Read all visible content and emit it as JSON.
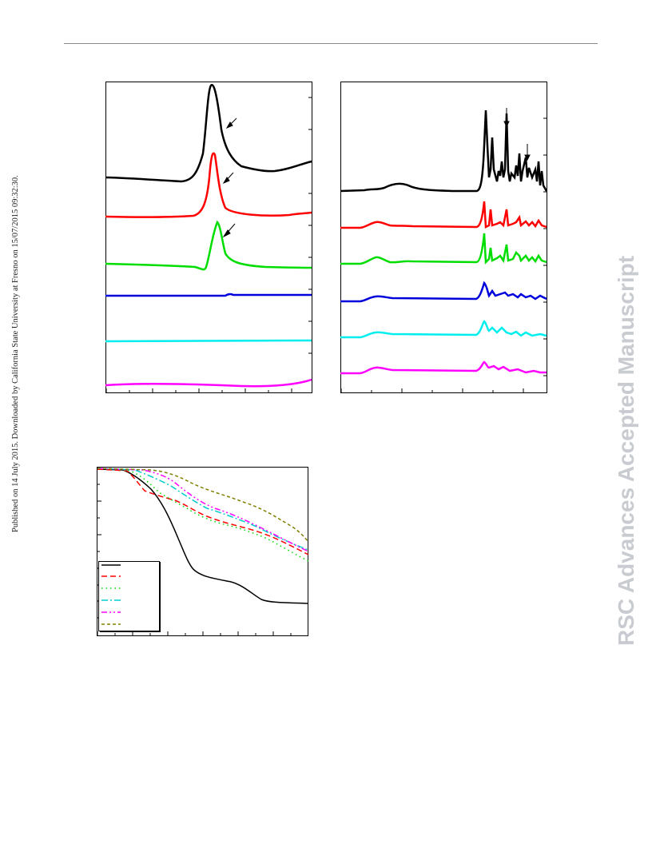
{
  "header": {
    "rule": true
  },
  "side_note": {
    "text": "Published on 14 July 2015. Downloaded by California State University at Fresno on 15/07/2015 09:32:30."
  },
  "watermark": {
    "text": "RSC Advances Accepted Manuscript"
  },
  "colors": {
    "s1": "#000000",
    "s2": "#ff0000",
    "s3": "#00dd00",
    "s4": "#0000dd",
    "s5": "#00eeee",
    "s6": "#ff00ff",
    "s_olive": "#808000"
  },
  "chart_data": [
    {
      "type": "line",
      "title": "",
      "xlabel": "",
      "ylabel": "",
      "grid": false,
      "legend": "none",
      "series_order": [
        "s1",
        "s2",
        "s3",
        "s4",
        "s5",
        "s6"
      ]
    },
    {
      "type": "line",
      "title": "",
      "xlabel": "",
      "ylabel": "",
      "grid": false,
      "legend": "none",
      "series_order": [
        "s1",
        "s2",
        "s3",
        "s4",
        "s5",
        "s6"
      ]
    },
    {
      "type": "line",
      "title": "",
      "xlabel": "",
      "ylabel": "",
      "grid": false,
      "legend": "top-left-lower",
      "series": [
        {
          "style": "solid",
          "color": "#000000"
        },
        {
          "style": "dash",
          "color": "#ff0000"
        },
        {
          "style": "dot",
          "color": "#00dd00"
        },
        {
          "style": "dashdot",
          "color": "#00cccc"
        },
        {
          "style": "dashdotdot",
          "color": "#ff00ff"
        },
        {
          "style": "shortdash",
          "color": "#808000"
        }
      ]
    }
  ]
}
